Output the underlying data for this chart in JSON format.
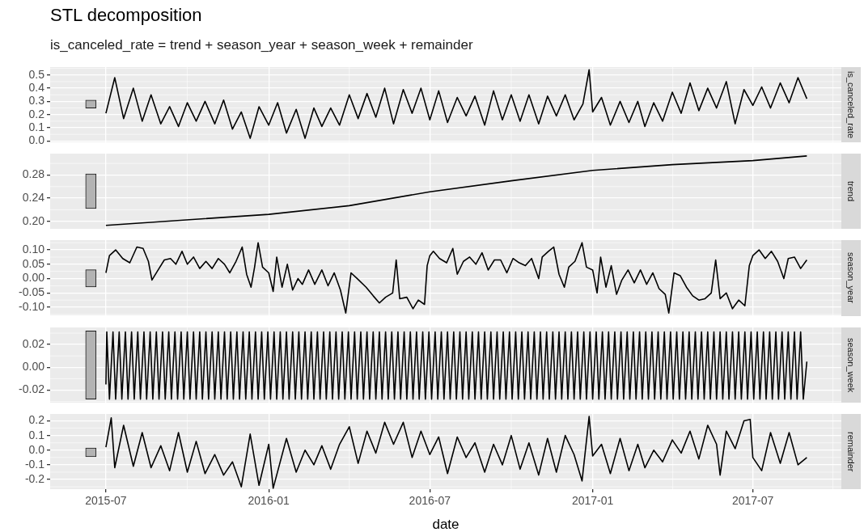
{
  "chart_data": [
    {
      "type": "line",
      "title": "STL decomposition",
      "subtitle": "is_canceled_rate = trend + season_year + season_week + remainder",
      "ylabel": "is_canceled_rate",
      "xlim": [
        "2015-04-29",
        "2017-10-09"
      ],
      "xticks": [
        "2015-07",
        "2016-01",
        "2016-07",
        "2017-01",
        "2017-07"
      ],
      "ylim": [
        -0.01,
        0.56
      ],
      "yticks": [
        {
          "value": 0,
          "label": "0.0"
        },
        0.1,
        0.2,
        0.3,
        0.4,
        0.5
      ],
      "grid": true,
      "tick_labels": "y",
      "series": [
        {
          "type": "bar",
          "color": "#b3b3b3",
          "x": [
            "2015-06-14"
          ],
          "base": [
            0.25
          ],
          "values": [
            0.06
          ]
        },
        {
          "color": "#000000",
          "x": [
            "2015-07-01",
            "2015-07-11",
            "2015-07-21",
            "2015-08-01",
            "2015-08-11",
            "2015-08-21",
            "2015-09-01",
            "2015-09-11",
            "2015-09-21",
            "2015-10-01",
            "2015-10-11",
            "2015-10-21",
            "2015-11-01",
            "2015-11-11",
            "2015-11-21",
            "2015-12-01",
            "2015-12-11",
            "2015-12-21",
            "2016-01-01",
            "2016-01-11",
            "2016-01-21",
            "2016-02-01",
            "2016-02-11",
            "2016-02-21",
            "2016-03-01",
            "2016-03-11",
            "2016-03-21",
            "2016-04-01",
            "2016-04-11",
            "2016-04-21",
            "2016-05-01",
            "2016-05-11",
            "2016-05-21",
            "2016-06-01",
            "2016-06-11",
            "2016-06-21",
            "2016-07-01",
            "2016-07-11",
            "2016-07-21",
            "2016-08-01",
            "2016-08-11",
            "2016-08-21",
            "2016-09-01",
            "2016-09-11",
            "2016-09-21",
            "2016-10-01",
            "2016-10-11",
            "2016-10-21",
            "2016-11-01",
            "2016-11-11",
            "2016-11-21",
            "2016-12-01",
            "2016-12-11",
            "2016-12-21",
            "2016-12-28",
            "2017-01-01",
            "2017-01-11",
            "2017-01-21",
            "2017-02-01",
            "2017-02-11",
            "2017-02-21",
            "2017-03-01",
            "2017-03-11",
            "2017-03-21",
            "2017-04-01",
            "2017-04-11",
            "2017-04-21",
            "2017-05-01",
            "2017-05-11",
            "2017-05-21",
            "2017-06-01",
            "2017-06-11",
            "2017-06-21",
            "2017-07-01",
            "2017-07-11",
            "2017-07-21",
            "2017-08-01",
            "2017-08-11",
            "2017-08-21",
            "2017-08-31"
          ],
          "values": [
            0.21,
            0.48,
            0.17,
            0.4,
            0.15,
            0.35,
            0.13,
            0.26,
            0.11,
            0.29,
            0.15,
            0.3,
            0.13,
            0.31,
            0.09,
            0.22,
            0.02,
            0.26,
            0.12,
            0.29,
            0.06,
            0.24,
            0.02,
            0.25,
            0.11,
            0.25,
            0.12,
            0.35,
            0.17,
            0.36,
            0.18,
            0.4,
            0.13,
            0.39,
            0.21,
            0.4,
            0.16,
            0.38,
            0.14,
            0.33,
            0.19,
            0.34,
            0.12,
            0.38,
            0.16,
            0.35,
            0.15,
            0.35,
            0.13,
            0.34,
            0.19,
            0.35,
            0.16,
            0.28,
            0.54,
            0.22,
            0.33,
            0.12,
            0.3,
            0.14,
            0.3,
            0.11,
            0.29,
            0.15,
            0.37,
            0.21,
            0.44,
            0.23,
            0.4,
            0.25,
            0.45,
            0.13,
            0.39,
            0.27,
            0.41,
            0.25,
            0.44,
            0.29,
            0.48,
            0.32
          ]
        }
      ]
    },
    {
      "type": "line",
      "ylabel": "trend",
      "xlim": [
        "2015-04-29",
        "2017-10-09"
      ],
      "xticks": [
        "2015-07",
        "2016-01",
        "2016-07",
        "2017-01",
        "2017-07"
      ],
      "ylim": [
        0.187,
        0.317
      ],
      "yticks": [
        {
          "value": 0.2,
          "label": "0.20"
        },
        {
          "value": 0.24,
          "label": "0.24"
        },
        {
          "value": 0.28,
          "label": "0.28"
        }
      ],
      "grid": true,
      "tick_labels": "y",
      "series": [
        {
          "type": "bar",
          "color": "#b3b3b3",
          "x": [
            "2015-06-14"
          ],
          "base": [
            0.222
          ],
          "values": [
            0.06
          ]
        },
        {
          "color": "#000000",
          "x": [
            "2015-07-01",
            "2016-01-01",
            "2016-04-01",
            "2016-07-01",
            "2016-10-01",
            "2017-01-01",
            "2017-04-01",
            "2017-07-01",
            "2017-08-31"
          ],
          "values": [
            0.193,
            0.212,
            0.227,
            0.251,
            0.27,
            0.288,
            0.298,
            0.305,
            0.313
          ]
        }
      ]
    },
    {
      "type": "line",
      "ylabel": "season_year",
      "xlim": [
        "2015-04-29",
        "2017-10-09"
      ],
      "xticks": [
        "2015-07",
        "2016-01",
        "2016-07",
        "2017-01",
        "2017-07"
      ],
      "ylim": [
        -0.128,
        0.134
      ],
      "yticks": [
        {
          "value": -0.1,
          "label": "-0.10"
        },
        {
          "value": -0.05,
          "label": "-0.05"
        },
        {
          "value": 0,
          "label": "0.00"
        },
        {
          "value": 0.05,
          "label": "0.05"
        },
        {
          "value": 0.1,
          "label": "0.10"
        }
      ],
      "grid": true,
      "tick_labels": "y",
      "series": [
        {
          "type": "bar",
          "color": "#b3b3b3",
          "x": [
            "2015-06-14"
          ],
          "base": [
            -0.029
          ],
          "values": [
            0.06
          ]
        },
        {
          "color": "#000000",
          "x": [
            "2015-07-01",
            "2015-07-05",
            "2015-07-12",
            "2015-07-20",
            "2015-07-28",
            "2015-08-05",
            "2015-08-12",
            "2015-08-18",
            "2015-08-22",
            "2015-08-28",
            "2015-09-05",
            "2015-09-12",
            "2015-09-18",
            "2015-09-25",
            "2015-10-01",
            "2015-10-08",
            "2015-10-15",
            "2015-10-22",
            "2015-10-29",
            "2015-11-05",
            "2015-11-12",
            "2015-11-18",
            "2015-11-25",
            "2015-12-02",
            "2015-12-07",
            "2015-12-12",
            "2015-12-16",
            "2015-12-20",
            "2015-12-25",
            "2016-01-01",
            "2016-01-06",
            "2016-01-10",
            "2016-01-16",
            "2016-01-22",
            "2016-01-28",
            "2016-02-03",
            "2016-02-08",
            "2016-02-15",
            "2016-02-22",
            "2016-03-01",
            "2016-03-08",
            "2016-03-15",
            "2016-03-22",
            "2016-03-28",
            "2016-04-03",
            "2016-04-10",
            "2016-04-20",
            "2016-04-28",
            "2016-05-05",
            "2016-05-12",
            "2016-05-20",
            "2016-05-24",
            "2016-05-28",
            "2016-06-05",
            "2016-06-12",
            "2016-06-18",
            "2016-06-25",
            "2016-06-28",
            "2016-07-01",
            "2016-07-05",
            "2016-07-12",
            "2016-07-20",
            "2016-07-27",
            "2016-08-01",
            "2016-08-08",
            "2016-08-15",
            "2016-08-22",
            "2016-08-29",
            "2016-09-05",
            "2016-09-12",
            "2016-09-19",
            "2016-09-26",
            "2016-10-03",
            "2016-10-10",
            "2016-10-17",
            "2016-10-24",
            "2016-11-01",
            "2016-11-05",
            "2016-11-12",
            "2016-11-18",
            "2016-11-24",
            "2016-11-30",
            "2016-12-05",
            "2016-12-12",
            "2016-12-20",
            "2016-12-25",
            "2017-01-01",
            "2017-01-06",
            "2017-01-10",
            "2017-01-16",
            "2017-01-22",
            "2017-01-28",
            "2017-02-03",
            "2017-02-10",
            "2017-02-17",
            "2017-02-24",
            "2017-03-03",
            "2017-03-10",
            "2017-03-17",
            "2017-03-24",
            "2017-03-28",
            "2017-04-03",
            "2017-04-10",
            "2017-04-17",
            "2017-04-24",
            "2017-05-01",
            "2017-05-08",
            "2017-05-15",
            "2017-05-20",
            "2017-05-25",
            "2017-06-01",
            "2017-06-08",
            "2017-06-15",
            "2017-06-22",
            "2017-06-27",
            "2017-07-01",
            "2017-07-08",
            "2017-07-15",
            "2017-07-22",
            "2017-07-29",
            "2017-08-05",
            "2017-08-10",
            "2017-08-17",
            "2017-08-24",
            "2017-08-31"
          ],
          "values": [
            0.02,
            0.08,
            0.1,
            0.07,
            0.055,
            0.11,
            0.105,
            0.06,
            -0.005,
            0.025,
            0.065,
            0.07,
            0.05,
            0.095,
            0.05,
            0.075,
            0.035,
            0.06,
            0.035,
            0.07,
            0.05,
            0.02,
            0.06,
            0.11,
            0.015,
            -0.03,
            0.04,
            0.125,
            0.04,
            0.02,
            -0.045,
            0.075,
            -0.03,
            0.05,
            -0.04,
            0,
            -0.02,
            0.03,
            -0.02,
            0.03,
            -0.025,
            0.02,
            -0.04,
            -0.12,
            0.02,
            0,
            -0.03,
            -0.06,
            -0.085,
            -0.065,
            -0.05,
            0.065,
            -0.07,
            -0.065,
            -0.105,
            -0.075,
            -0.09,
            0.045,
            0.08,
            0.095,
            0.07,
            0.055,
            0.105,
            0.015,
            0.06,
            0.075,
            0.05,
            0.09,
            0.03,
            0.065,
            0.065,
            0.02,
            0.07,
            0.055,
            0.045,
            0.07,
            0,
            0.075,
            0.095,
            0.11,
            0.015,
            -0.03,
            0.04,
            0.06,
            0.125,
            0.04,
            0.03,
            -0.05,
            0.075,
            -0.03,
            0.045,
            -0.055,
            -0.005,
            0.03,
            -0.015,
            0.03,
            -0.02,
            0.02,
            -0.035,
            -0.055,
            -0.12,
            0.02,
            0.01,
            -0.03,
            -0.06,
            -0.075,
            -0.07,
            -0.05,
            0.065,
            -0.07,
            -0.05,
            -0.105,
            -0.075,
            -0.095,
            0.045,
            0.08,
            0.1,
            0.07,
            0.095,
            0.06,
            0,
            0.07,
            0.075,
            0.035,
            0.065
          ]
        }
      ]
    },
    {
      "type": "line",
      "ylabel": "season_week",
      "xlim": [
        "2015-04-29",
        "2017-10-09"
      ],
      "xticks": [
        "2015-07",
        "2016-01",
        "2016-07",
        "2017-01",
        "2017-07"
      ],
      "ylim": [
        -0.031,
        0.035
      ],
      "yticks": [
        {
          "value": -0.02,
          "label": "-0.02"
        },
        {
          "value": 0,
          "label": "0.00"
        },
        {
          "value": 0.02,
          "label": "0.02"
        }
      ],
      "grid": true,
      "tick_labels": "y",
      "series": [
        {
          "type": "bar",
          "color": "#b3b3b3",
          "x": [
            "2015-06-14"
          ],
          "base": [
            -0.028
          ],
          "values": [
            0.06
          ]
        },
        {
          "color": "#000000",
          "x": [
            "2015-07-01",
            "2015-07-02",
            "2015-07-05",
            "2015-07-09",
            "2015-07-12",
            "2015-07-16",
            "2015-07-19",
            "2015-07-23",
            "2015-07-26",
            "2015-07-30",
            "2015-08-02",
            "2015-08-06",
            "2015-08-09",
            "2015-08-13",
            "2015-08-16",
            "2015-08-20",
            "2015-08-23",
            "2015-08-27",
            "2015-08-30",
            "2015-09-03",
            "2015-09-06",
            "2015-09-10",
            "2015-09-13",
            "2015-09-17",
            "2015-09-20",
            "2015-09-24",
            "2015-09-27",
            "2015-10-01",
            "2015-10-04",
            "2015-10-08",
            "2015-10-11",
            "2015-10-15",
            "2015-10-18",
            "2015-10-22",
            "2015-10-25",
            "2015-10-29",
            "2015-11-01",
            "2015-11-05",
            "2015-11-08",
            "2015-11-12",
            "2015-11-15",
            "2015-11-19",
            "2015-11-22",
            "2015-11-26",
            "2015-11-29",
            "2015-12-03",
            "2015-12-06",
            "2015-12-10",
            "2015-12-13",
            "2015-12-17",
            "2015-12-20",
            "2015-12-24",
            "2015-12-27",
            "2015-12-31",
            "2016-01-03",
            "2016-01-07",
            "2016-01-10",
            "2016-01-14",
            "2016-01-17",
            "2016-01-21",
            "2016-01-24",
            "2016-01-28",
            "2016-01-31",
            "2016-02-04",
            "2016-02-07",
            "2016-02-11",
            "2016-02-14",
            "2016-02-18",
            "2016-02-21",
            "2016-02-25",
            "2016-02-28",
            "2016-03-03",
            "2016-03-06",
            "2016-03-10",
            "2016-03-13",
            "2016-03-17",
            "2016-03-20",
            "2016-03-24",
            "2016-03-27",
            "2016-03-31",
            "2016-04-03",
            "2016-04-07",
            "2016-04-10",
            "2016-04-14",
            "2016-04-17",
            "2016-04-21",
            "2016-04-24",
            "2016-04-28",
            "2016-05-01",
            "2016-05-05",
            "2016-05-08",
            "2016-05-12",
            "2016-05-15",
            "2016-05-19",
            "2016-05-22",
            "2016-05-26",
            "2016-05-29",
            "2016-06-02",
            "2016-06-05",
            "2016-06-09",
            "2016-06-12",
            "2016-06-16",
            "2016-06-19",
            "2016-06-23",
            "2016-06-26",
            "2016-06-30",
            "2016-07-03",
            "2016-07-07",
            "2016-07-10",
            "2016-07-14",
            "2016-07-17",
            "2016-07-21",
            "2016-07-24",
            "2016-07-28",
            "2016-07-31",
            "2016-08-04",
            "2016-08-07",
            "2016-08-11",
            "2016-08-14",
            "2016-08-18",
            "2016-08-21",
            "2016-08-25",
            "2016-08-28",
            "2016-09-01",
            "2016-09-04",
            "2016-09-08",
            "2016-09-11",
            "2016-09-15",
            "2016-09-18",
            "2016-09-22",
            "2016-09-25",
            "2016-09-29",
            "2016-10-02",
            "2016-10-06",
            "2016-10-09",
            "2016-10-13",
            "2016-10-16",
            "2016-10-20",
            "2016-10-23",
            "2016-10-27",
            "2016-10-30",
            "2016-11-03",
            "2016-11-06",
            "2016-11-10",
            "2016-11-13",
            "2016-11-17",
            "2016-11-20",
            "2016-11-24",
            "2016-11-27",
            "2016-12-01",
            "2016-12-04",
            "2016-12-08",
            "2016-12-11",
            "2016-12-15",
            "2016-12-18",
            "2016-12-22",
            "2016-12-25",
            "2016-12-29",
            "2017-01-01",
            "2017-01-05",
            "2017-01-08",
            "2017-01-12",
            "2017-01-15",
            "2017-01-19",
            "2017-01-22",
            "2017-01-26",
            "2017-01-29",
            "2017-02-02",
            "2017-02-05",
            "2017-02-09",
            "2017-02-12",
            "2017-02-16",
            "2017-02-19",
            "2017-02-23",
            "2017-02-26",
            "2017-03-02",
            "2017-03-05",
            "2017-03-09",
            "2017-03-12",
            "2017-03-16",
            "2017-03-19",
            "2017-03-23",
            "2017-03-26",
            "2017-03-30",
            "2017-04-02",
            "2017-04-06",
            "2017-04-09",
            "2017-04-13",
            "2017-04-16",
            "2017-04-20",
            "2017-04-23",
            "2017-04-27",
            "2017-04-30",
            "2017-05-04",
            "2017-05-07",
            "2017-05-11",
            "2017-05-14",
            "2017-05-18",
            "2017-05-21",
            "2017-05-25",
            "2017-05-28",
            "2017-06-01",
            "2017-06-04",
            "2017-06-08",
            "2017-06-11",
            "2017-06-15",
            "2017-06-18",
            "2017-06-22",
            "2017-06-25",
            "2017-06-29",
            "2017-07-02",
            "2017-07-06",
            "2017-07-09",
            "2017-07-13",
            "2017-07-16",
            "2017-07-20",
            "2017-07-23",
            "2017-07-27",
            "2017-07-30",
            "2017-08-03",
            "2017-08-06",
            "2017-08-10",
            "2017-08-13",
            "2017-08-17",
            "2017-08-20",
            "2017-08-24",
            "2017-08-27",
            "2017-08-31"
          ],
          "values": [
            -0.015,
            0.031,
            -0.028,
            0.031,
            -0.028,
            0.031,
            -0.028,
            0.031,
            -0.028,
            0.031,
            -0.028,
            0.031,
            -0.028,
            0.031,
            -0.028,
            0.031,
            -0.028,
            0.031,
            -0.028,
            0.031,
            -0.028,
            0.031,
            -0.028,
            0.031,
            -0.028,
            0.031,
            -0.028,
            0.031,
            -0.028,
            0.031,
            -0.028,
            0.031,
            -0.028,
            0.031,
            -0.028,
            0.031,
            -0.028,
            0.031,
            -0.028,
            0.031,
            -0.028,
            0.031,
            -0.028,
            0.031,
            -0.028,
            0.031,
            -0.028,
            0.031,
            -0.028,
            0.031,
            -0.028,
            0.031,
            -0.028,
            0.031,
            -0.028,
            0.031,
            -0.028,
            0.031,
            -0.028,
            0.031,
            -0.028,
            0.031,
            -0.028,
            0.031,
            -0.028,
            0.031,
            -0.028,
            0.031,
            -0.028,
            0.031,
            -0.028,
            0.031,
            -0.028,
            0.031,
            -0.028,
            0.031,
            -0.028,
            0.031,
            -0.028,
            0.031,
            -0.028,
            0.031,
            -0.028,
            0.031,
            -0.028,
            0.031,
            -0.028,
            0.031,
            -0.028,
            0.031,
            -0.028,
            0.031,
            -0.028,
            0.031,
            -0.028,
            0.031,
            -0.028,
            0.031,
            -0.028,
            0.031,
            -0.028,
            0.031,
            -0.028,
            0.031,
            -0.028,
            0.031,
            -0.028,
            0.031,
            -0.028,
            0.031,
            -0.028,
            0.031,
            -0.028,
            0.031,
            -0.028,
            0.031,
            -0.028,
            0.031,
            -0.028,
            0.031,
            -0.028,
            0.031,
            -0.028,
            0.031,
            -0.028,
            0.031,
            -0.028,
            0.031,
            -0.028,
            0.031,
            -0.028,
            0.031,
            -0.028,
            0.031,
            -0.028,
            0.031,
            -0.028,
            0.031,
            -0.028,
            0.031,
            -0.028,
            0.031,
            -0.028,
            0.031,
            -0.028,
            0.031,
            -0.028,
            0.031,
            -0.028,
            0.031,
            -0.028,
            0.031,
            -0.028,
            0.031,
            -0.028,
            0.031,
            -0.028,
            0.031,
            -0.028,
            0.031,
            -0.028,
            0.031,
            -0.028,
            0.031,
            -0.028,
            0.031,
            -0.028,
            0.031,
            -0.028,
            0.031,
            -0.028,
            0.031,
            -0.028,
            0.031,
            -0.028,
            0.031,
            -0.028,
            0.031,
            -0.028,
            0.031,
            -0.028,
            0.031,
            -0.028,
            0.031,
            -0.028,
            0.031,
            -0.028,
            0.031,
            -0.028,
            0.031,
            -0.028,
            0.031,
            -0.028,
            0.031,
            -0.028,
            0.031,
            -0.028,
            0.031,
            -0.028,
            0.031,
            -0.028,
            0.031,
            -0.028,
            0.031,
            -0.028,
            0.031,
            -0.028,
            0.031,
            -0.028,
            0.031,
            -0.028,
            0.031,
            -0.028,
            0.031,
            -0.028,
            0.031,
            -0.028,
            0.031,
            -0.028,
            0.031,
            -0.028,
            0.031,
            -0.028,
            0.031,
            -0.028,
            0.031,
            -0.028,
            0.005
          ]
        }
      ]
    },
    {
      "type": "line",
      "ylabel": "remainder",
      "xlabel": "date",
      "xlim": [
        "2015-04-29",
        "2017-10-09"
      ],
      "xticks": [
        "2015-07",
        "2016-01",
        "2016-07",
        "2017-01",
        "2017-07"
      ],
      "ylim": [
        -0.266,
        0.247
      ],
      "yticks": [
        -0.2,
        -0.1,
        {
          "value": 0,
          "label": "0.0"
        },
        0.1,
        0.2
      ],
      "grid": true,
      "series": [
        {
          "type": "bar",
          "color": "#b3b3b3",
          "x": [
            "2015-06-14"
          ],
          "base": [
            -0.045
          ],
          "values": [
            0.06
          ]
        },
        {
          "color": "#000000",
          "x": [
            "2015-07-01",
            "2015-07-07",
            "2015-07-11",
            "2015-07-21",
            "2015-08-01",
            "2015-08-11",
            "2015-08-21",
            "2015-09-01",
            "2015-09-11",
            "2015-09-21",
            "2015-10-01",
            "2015-10-11",
            "2015-10-21",
            "2015-11-01",
            "2015-11-11",
            "2015-11-21",
            "2015-12-01",
            "2015-12-11",
            "2015-12-21",
            "2016-01-01",
            "2016-01-06",
            "2016-01-21",
            "2016-02-01",
            "2016-02-11",
            "2016-02-21",
            "2016-03-01",
            "2016-03-11",
            "2016-03-21",
            "2016-04-01",
            "2016-04-11",
            "2016-04-21",
            "2016-05-01",
            "2016-05-11",
            "2016-05-21",
            "2016-06-01",
            "2016-06-11",
            "2016-06-21",
            "2016-07-01",
            "2016-07-11",
            "2016-07-21",
            "2016-08-01",
            "2016-08-11",
            "2016-08-21",
            "2016-09-01",
            "2016-09-11",
            "2016-09-21",
            "2016-10-01",
            "2016-10-11",
            "2016-10-21",
            "2016-11-01",
            "2016-11-11",
            "2016-11-21",
            "2016-12-01",
            "2016-12-11",
            "2016-12-20",
            "2016-12-28",
            "2017-01-01",
            "2017-01-11",
            "2017-01-21",
            "2017-02-01",
            "2017-02-11",
            "2017-02-21",
            "2017-03-01",
            "2017-03-11",
            "2017-03-21",
            "2017-04-01",
            "2017-04-11",
            "2017-04-21",
            "2017-05-01",
            "2017-05-11",
            "2017-05-21",
            "2017-05-25",
            "2017-06-01",
            "2017-06-11",
            "2017-06-21",
            "2017-06-28",
            "2017-07-01",
            "2017-07-11",
            "2017-07-21",
            "2017-08-01",
            "2017-08-11",
            "2017-08-21",
            "2017-08-31"
          ],
          "values": [
            0.02,
            0.22,
            -0.12,
            0.17,
            -0.11,
            0.12,
            -0.12,
            0.03,
            -0.14,
            0.12,
            -0.15,
            0.06,
            -0.16,
            -0.03,
            -0.17,
            -0.08,
            -0.25,
            0.11,
            -0.24,
            0.04,
            -0.26,
            0.08,
            -0.15,
            0,
            -0.1,
            0.03,
            -0.13,
            0.04,
            0.16,
            -0.09,
            0.13,
            -0.02,
            0.19,
            0.04,
            0.19,
            -0.05,
            0.13,
            -0.03,
            0.09,
            -0.16,
            0.09,
            -0.05,
            0.05,
            -0.15,
            0.04,
            -0.1,
            0.1,
            -0.13,
            0.05,
            -0.17,
            0.08,
            -0.15,
            0.1,
            -0.03,
            -0.21,
            0.23,
            -0.04,
            0.04,
            -0.16,
            0.08,
            -0.14,
            0.04,
            -0.12,
            0,
            -0.08,
            0.07,
            -0.02,
            0.13,
            -0.06,
            0.17,
            0.04,
            -0.17,
            0.13,
            0.01,
            0.2,
            0.21,
            -0.05,
            -0.14,
            0.12,
            -0.09,
            0.12,
            -0.1,
            -0.05
          ]
        }
      ]
    }
  ]
}
